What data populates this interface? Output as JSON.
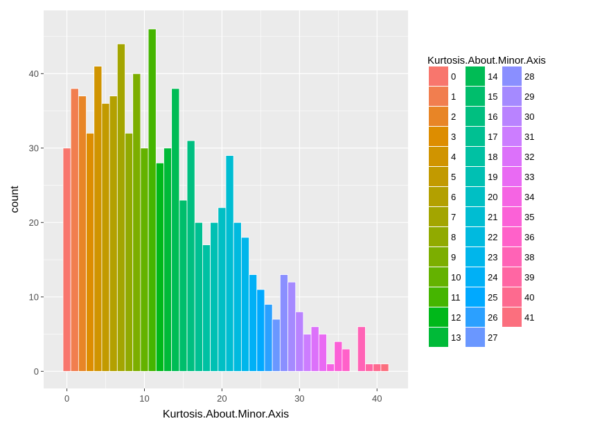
{
  "chart_data": {
    "type": "bar",
    "xlabel": "Kurtosis.About.Minor.Axis",
    "ylabel": "count",
    "xlim": [
      -3,
      44
    ],
    "ylim": [
      -2.3,
      48.5
    ],
    "x_ticks": [
      0,
      10,
      20,
      30,
      40
    ],
    "y_ticks": [
      0,
      10,
      20,
      30,
      40
    ],
    "grid": true,
    "legend": {
      "title": "Kurtosis.About.Minor.Axis",
      "position": "right",
      "entries": [
        "0",
        "1",
        "2",
        "3",
        "4",
        "5",
        "6",
        "7",
        "8",
        "9",
        "10",
        "11",
        "12",
        "13",
        "14",
        "15",
        "16",
        "17",
        "18",
        "19",
        "20",
        "21",
        "22",
        "23",
        "24",
        "25",
        "26",
        "27",
        "28",
        "29",
        "30",
        "31",
        "32",
        "33",
        "34",
        "35",
        "36",
        "38",
        "39",
        "40",
        "41"
      ]
    },
    "bars": [
      {
        "x": 0,
        "label": "0",
        "value": 30,
        "color": "#F8766D"
      },
      {
        "x": 1,
        "label": "1",
        "value": 38,
        "color": "#F17E4F"
      },
      {
        "x": 2,
        "label": "2",
        "value": 37,
        "color": "#E88526"
      },
      {
        "x": 3,
        "label": "3",
        "value": 32,
        "color": "#DD8D00"
      },
      {
        "x": 4,
        "label": "4",
        "value": 41,
        "color": "#D09400"
      },
      {
        "x": 5,
        "label": "5",
        "value": 36,
        "color": "#C29A00"
      },
      {
        "x": 6,
        "label": "6",
        "value": 37,
        "color": "#B3A000"
      },
      {
        "x": 7,
        "label": "7",
        "value": 44,
        "color": "#A3A500"
      },
      {
        "x": 8,
        "label": "8",
        "value": 32,
        "color": "#91AA00"
      },
      {
        "x": 9,
        "label": "9",
        "value": 40,
        "color": "#7CAE00"
      },
      {
        "x": 10,
        "label": "10",
        "value": 30,
        "color": "#64B200"
      },
      {
        "x": 11,
        "label": "11",
        "value": 46,
        "color": "#45B500"
      },
      {
        "x": 12,
        "label": "12",
        "value": 28,
        "color": "#00B81A"
      },
      {
        "x": 13,
        "label": "13",
        "value": 30,
        "color": "#00BA38"
      },
      {
        "x": 14,
        "label": "14",
        "value": 38,
        "color": "#00BC55"
      },
      {
        "x": 15,
        "label": "15",
        "value": 23,
        "color": "#00BE6C"
      },
      {
        "x": 16,
        "label": "16",
        "value": 31,
        "color": "#00BF80"
      },
      {
        "x": 17,
        "label": "17",
        "value": 20,
        "color": "#00C092"
      },
      {
        "x": 18,
        "label": "18",
        "value": 17,
        "color": "#00C1A3"
      },
      {
        "x": 19,
        "label": "19",
        "value": 20,
        "color": "#00C0B3"
      },
      {
        "x": 20,
        "label": "20",
        "value": 22,
        "color": "#00BFC4"
      },
      {
        "x": 21,
        "label": "21",
        "value": 29,
        "color": "#00BDD2"
      },
      {
        "x": 22,
        "label": "22",
        "value": 20,
        "color": "#00BADF"
      },
      {
        "x": 23,
        "label": "23",
        "value": 18,
        "color": "#00B6EB"
      },
      {
        "x": 24,
        "label": "24",
        "value": 13,
        "color": "#00B0F6"
      },
      {
        "x": 25,
        "label": "25",
        "value": 11,
        "color": "#00A9FF"
      },
      {
        "x": 26,
        "label": "26",
        "value": 9,
        "color": "#2BA0FF"
      },
      {
        "x": 27,
        "label": "27",
        "value": 7,
        "color": "#6A97FF"
      },
      {
        "x": 28,
        "label": "28",
        "value": 13,
        "color": "#8A8FFF"
      },
      {
        "x": 29,
        "label": "29",
        "value": 12,
        "color": "#A58AFF"
      },
      {
        "x": 30,
        "label": "30",
        "value": 8,
        "color": "#B983FF"
      },
      {
        "x": 31,
        "label": "31",
        "value": 5,
        "color": "#CC7DFF"
      },
      {
        "x": 32,
        "label": "32",
        "value": 6,
        "color": "#DC71FA"
      },
      {
        "x": 33,
        "label": "33",
        "value": 5,
        "color": "#E96AF3"
      },
      {
        "x": 34,
        "label": "34",
        "value": 1,
        "color": "#F564E3"
      },
      {
        "x": 35,
        "label": "35",
        "value": 4,
        "color": "#FB61D7"
      },
      {
        "x": 36,
        "label": "36",
        "value": 3,
        "color": "#FF61C9"
      },
      {
        "x": 38,
        "label": "38",
        "value": 6,
        "color": "#FF63B6"
      },
      {
        "x": 39,
        "label": "39",
        "value": 1,
        "color": "#FF66A3"
      },
      {
        "x": 40,
        "label": "40",
        "value": 1,
        "color": "#FD6A8F"
      },
      {
        "x": 41,
        "label": "41",
        "value": 1,
        "color": "#FB6F7E"
      }
    ]
  }
}
